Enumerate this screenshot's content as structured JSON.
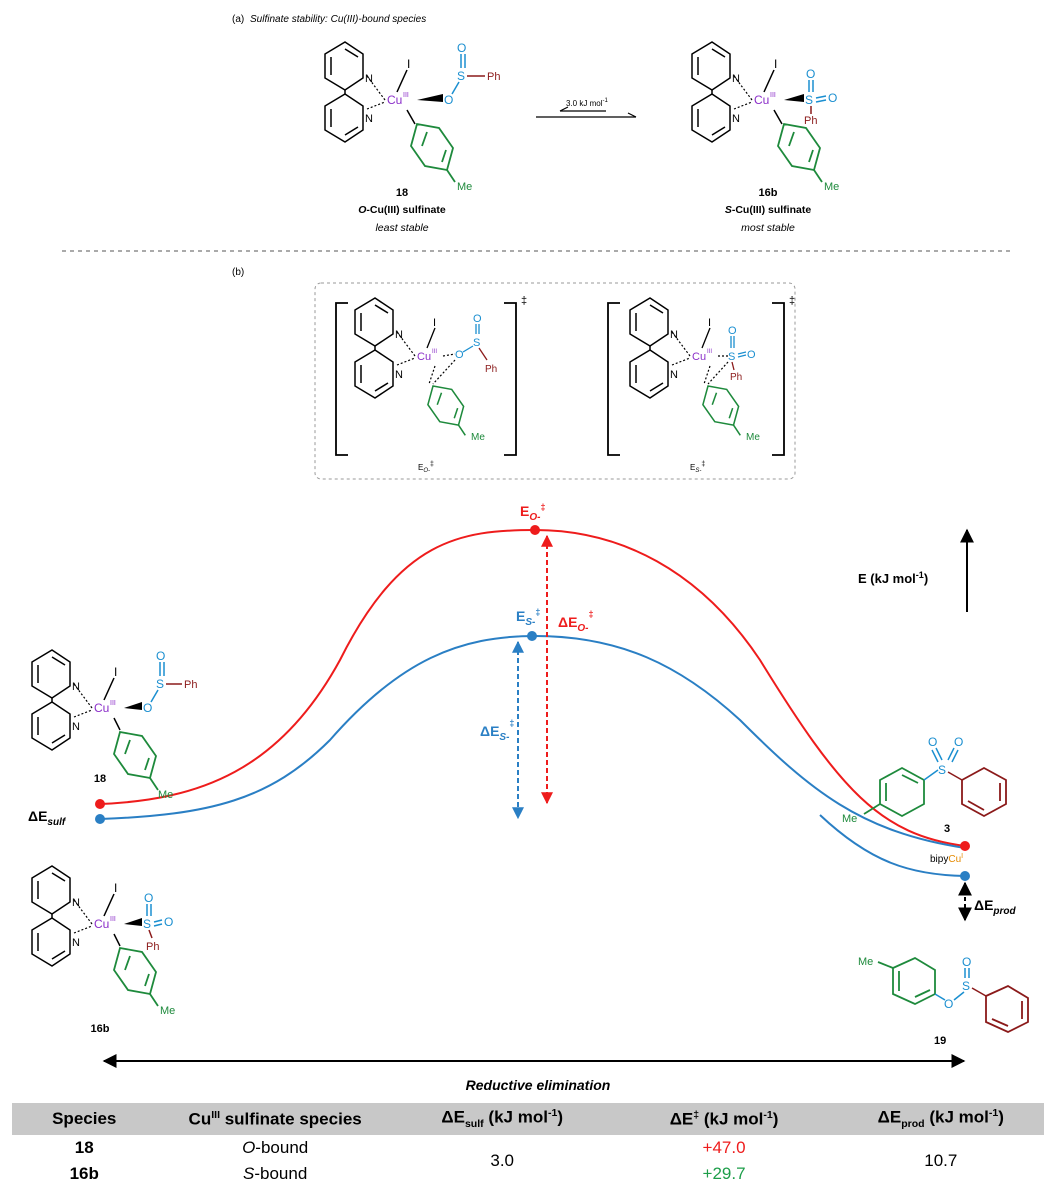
{
  "part_a": {
    "label": "(a)",
    "title": "Sulfinate stability: Cu(III)-bound species",
    "equilibrium_energy": "3.0 kJ mol",
    "equilibrium_energy_sup": "-1",
    "left": {
      "number": "18",
      "name": "O-Cu(III) sulfinate",
      "name_italic_part": "O",
      "name_rest": "-Cu(III) sulfinate",
      "stability": "least stable"
    },
    "right": {
      "number": "16b",
      "name": "S-Cu(III) sulfinate",
      "name_italic_part": "S",
      "name_rest": "-Cu(III) sulfinate",
      "stability": "most stable"
    }
  },
  "part_b": {
    "label": "(b)",
    "ts_left_label": "E",
    "ts_left_sub": "O-",
    "ts_right_label": "E",
    "ts_right_sub": "S-",
    "dagger": "‡"
  },
  "atoms": {
    "N": "N",
    "Cu": "Cu",
    "III": "III",
    "I": "I",
    "O": "O",
    "S": "S",
    "Ph": "Ph",
    "Me": "Me"
  },
  "profile": {
    "axis_label": "E (kJ mol",
    "axis_label_sup": "-1",
    "axis_label_end": ")",
    "peak_o_label": "E",
    "peak_o_sub": "O-",
    "peak_s_label": "E",
    "peak_s_sub": "S-",
    "delta_o_label": "ΔE",
    "delta_o_sub": "O-",
    "delta_s_label": "ΔE",
    "delta_s_sub": "S-",
    "delta_sulf": "ΔE",
    "delta_sulf_sub": "sulf",
    "delta_prod": "ΔE",
    "delta_prod_sub": "prod",
    "start_upper_label": "18",
    "start_lower_label": "16b",
    "product_upper": "3",
    "product_lower": "19",
    "bipy_label": "bipy",
    "cu_label": "Cu",
    "cu_sup": "I",
    "reaction_axis": "Reductive elimination",
    "colors": {
      "o_path": "#ee1c1c",
      "s_path": "#2a7fc4",
      "aryl": "#1e8a3c",
      "phenyl": "#8b1a1a",
      "copper": "#8b2fc9",
      "sulfinate": "#1b8fd0",
      "cu_i": "#e58a00"
    }
  },
  "table": {
    "headers": {
      "species": "Species",
      "cu_species": "Cu",
      "cu_species_sup": "III",
      "cu_species_rest": " sulfinate species",
      "d_sulf": "ΔE",
      "d_sulf_sub": "sulf",
      "d_sulf_rest": " (kJ mol",
      "d_ts": "ΔE",
      "d_ts_sup": "‡",
      "d_ts_rest": " (kJ mol",
      "d_prod": "ΔE",
      "d_prod_sub": "prod",
      "d_prod_rest": " (kJ mol",
      "unit_sup": "-1",
      "unit_end": ")"
    },
    "rows": [
      {
        "species": "18",
        "bound_italic": "O",
        "bound_rest": "-bound",
        "d_ts": "+47.0"
      },
      {
        "species": "16b",
        "bound_italic": "S",
        "bound_rest": "-bound",
        "d_ts": "+29.7"
      }
    ],
    "d_sulf_value": "3.0",
    "d_prod_value": "10.7",
    "ts_colors": [
      "#ee1c1c",
      "#1e9e4a"
    ]
  }
}
